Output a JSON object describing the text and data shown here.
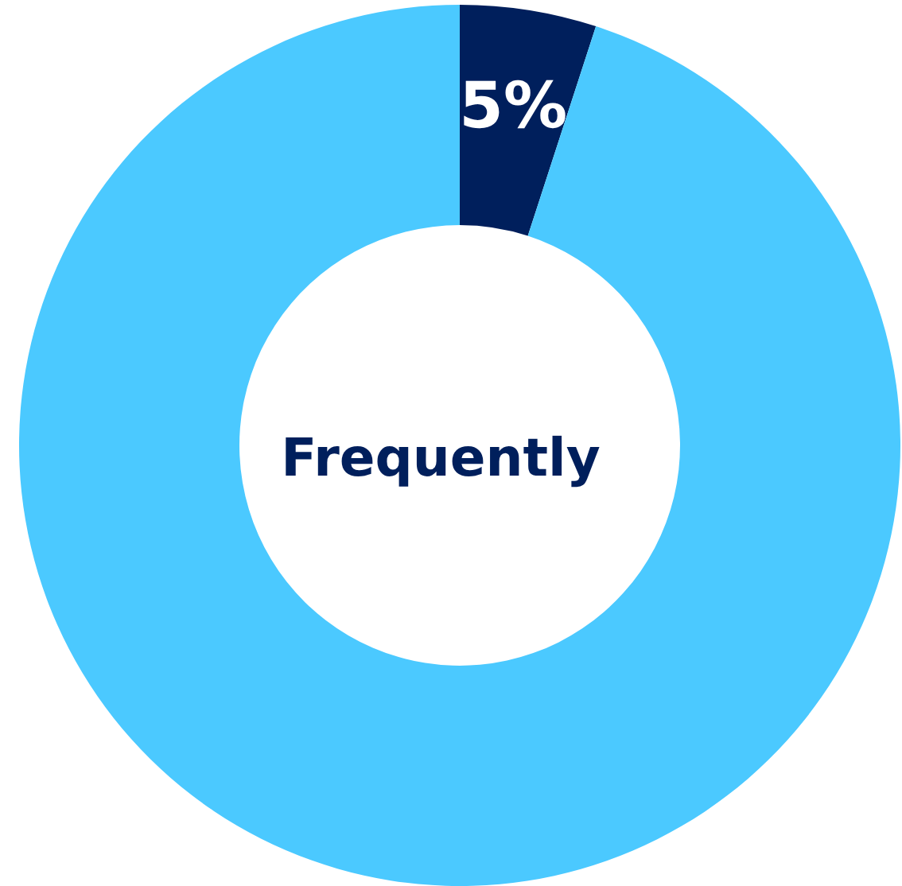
{
  "chart_data": {
    "type": "donut",
    "title": "Frequently",
    "categories": [
      null,
      null
    ],
    "values": [
      5,
      95
    ],
    "colors": [
      "#001f5c",
      "#4bc9ff"
    ],
    "value_labels": [
      "5%",
      null
    ]
  }
}
